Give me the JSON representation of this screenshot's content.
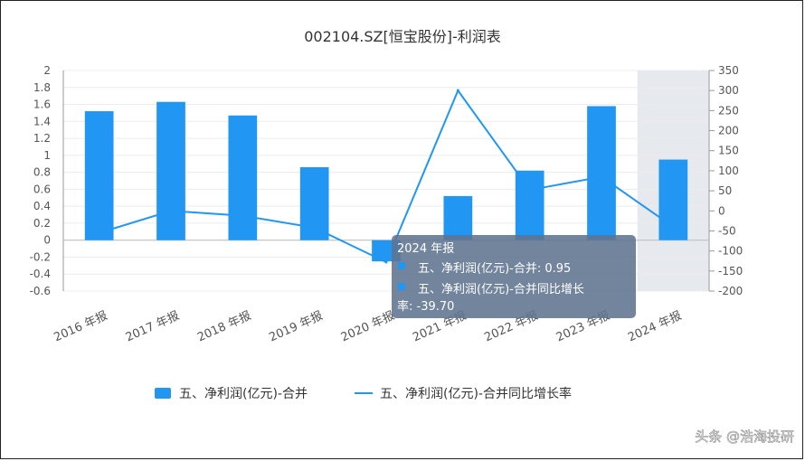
{
  "chart_data": {
    "type": "bar",
    "title": "002104.SZ[恒宝股份]-利润表",
    "categories": [
      "2016 年报",
      "2017 年报",
      "2018 年报",
      "2019 年报",
      "2020 年报",
      "2021 年报",
      "2022 年报",
      "2023 年报",
      "2024 年报"
    ],
    "series": [
      {
        "name": "五、净利润(亿元)-合并",
        "type": "bar",
        "axis": "left",
        "color": "#2196f3",
        "values": [
          1.52,
          1.63,
          1.47,
          0.86,
          -0.25,
          0.52,
          0.82,
          1.58,
          0.95
        ]
      },
      {
        "name": "五、净利润(亿元)-合并同比增长率",
        "type": "line",
        "axis": "right",
        "color": "#2196f3",
        "values": [
          -55,
          0,
          -12,
          -42,
          -128,
          300,
          52,
          85,
          -39.7
        ]
      }
    ],
    "y_left": {
      "min": -0.6,
      "max": 2,
      "ticks": [
        "2",
        "1.8",
        "1.6",
        "1.4",
        "1.2",
        "1",
        "0.8",
        "0.6",
        "0.4",
        "0.2",
        "0",
        "-0.2",
        "-0.4",
        "-0.6"
      ]
    },
    "y_right": {
      "min": -200,
      "max": 350,
      "ticks": [
        "350",
        "300",
        "250",
        "200",
        "150",
        "100",
        "50",
        "0",
        "-50",
        "-100",
        "-150",
        "-200"
      ]
    },
    "highlight_category": "2024 年报",
    "grid": true,
    "legend_position": "bottom"
  },
  "tooltip": {
    "title": "2024 年报",
    "line1": "五、净利润(亿元)-合并: 0.95",
    "line2": "五、净利润(亿元)-合并同比增长",
    "line3": "率: -39.70"
  },
  "watermark": "头条 @浩海投研"
}
